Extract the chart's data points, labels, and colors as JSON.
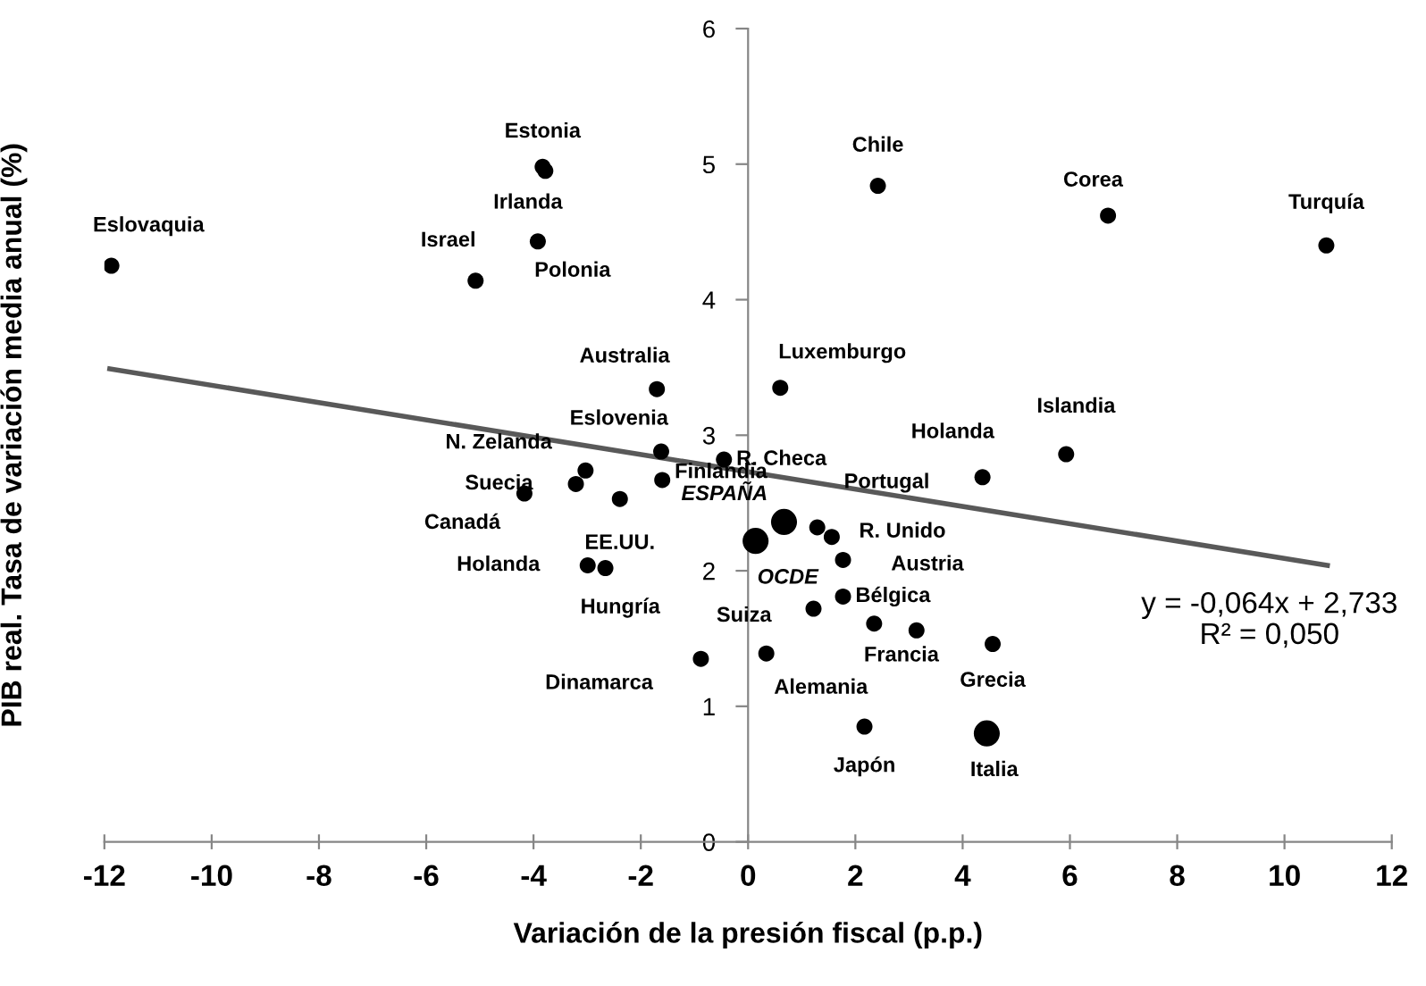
{
  "chart_data": {
    "type": "scatter",
    "xlabel": "Variación de la presión fiscal (p.p.)",
    "ylabel": "PIB real. Tasa de variación media anual (%)",
    "xlim": [
      -12,
      12
    ],
    "xticks": [
      -12,
      -10,
      -8,
      -6,
      -4,
      -2,
      0,
      2,
      4,
      6,
      8,
      10,
      12
    ],
    "ylim": [
      0,
      6
    ],
    "yticks": [
      0,
      1,
      2,
      3,
      4,
      5,
      6
    ],
    "grid": false,
    "marker": "circle",
    "series": [
      {
        "color": "#000000",
        "x": [
          -11.87,
          -3.83,
          -3.78,
          -5.08,
          -3.92,
          -1.7,
          -1.62,
          -3.03,
          -3.21,
          -4.17,
          -2.39,
          -1.6,
          -0.45,
          0.6,
          1.29,
          1.56,
          1.77,
          1.77,
          1.22,
          2.35,
          3.14,
          4.56,
          0.34,
          -0.88,
          -2.99,
          -2.66,
          2.42,
          6.71,
          10.78,
          5.93,
          4.37,
          2.17
        ],
        "values": [
          4.25,
          4.98,
          4.95,
          4.14,
          4.43,
          3.34,
          2.88,
          2.74,
          2.64,
          2.57,
          2.53,
          2.67,
          2.82,
          3.35,
          2.32,
          2.25,
          2.08,
          1.81,
          1.72,
          1.61,
          1.56,
          1.46,
          1.39,
          1.35,
          2.04,
          2.02,
          4.84,
          4.62,
          4.4,
          2.86,
          2.69,
          0.85
        ]
      },
      {
        "color": "#000000",
        "type": "bubble",
        "x": [
          0.67,
          0.14,
          4.45
        ],
        "values": [
          2.36,
          2.22,
          0.8
        ]
      },
      {
        "type": "line",
        "color": "#595959",
        "marker": "none",
        "line_style": "solid",
        "x": [
          -11.9,
          10.8
        ],
        "values": [
          3.49,
          2.04
        ]
      }
    ],
    "annotations": [
      {
        "text": "Eslovaquia",
        "x": -11.87,
        "y": 4.25
      },
      {
        "text": "Estonia",
        "x": -3.83,
        "y": 4.98
      },
      {
        "text": "Irlanda",
        "x": -3.78,
        "y": 4.95
      },
      {
        "text": "Israel",
        "x": -5.08,
        "y": 4.14
      },
      {
        "text": "Polonia",
        "x": -3.92,
        "y": 4.43
      },
      {
        "text": "Australia",
        "x": -1.7,
        "y": 3.34
      },
      {
        "text": "Eslovenia",
        "x": -1.62,
        "y": 2.88
      },
      {
        "text": "N. Zelanda",
        "x": -3.03,
        "y": 2.74
      },
      {
        "text": "Suecia",
        "x": -3.21,
        "y": 2.64
      },
      {
        "text": "Canadá",
        "x": -4.17,
        "y": 2.57
      },
      {
        "text": "EE.UU.",
        "x": -2.39,
        "y": 2.53
      },
      {
        "text": "Finlandia",
        "x": -1.6,
        "y": 2.67
      },
      {
        "text": "R. Checa",
        "x": -0.45,
        "y": 2.82
      },
      {
        "text": "Luxemburgo",
        "x": 0.6,
        "y": 3.35
      },
      {
        "text": "ESPAÑA",
        "x": 0.67,
        "y": 2.36
      },
      {
        "text": "OCDE",
        "x": 0.14,
        "y": 2.22
      },
      {
        "text": "Portugal",
        "x": 1.29,
        "y": 2.32
      },
      {
        "text": "R. Unido",
        "x": 1.56,
        "y": 2.25
      },
      {
        "text": "Austria",
        "x": 1.77,
        "y": 2.08
      },
      {
        "text": "Bélgica",
        "x": 1.77,
        "y": 1.81
      },
      {
        "text": "Suiza",
        "x": 1.22,
        "y": 1.72
      },
      {
        "text": "Francia",
        "x": 2.35,
        "y": 1.61
      },
      {
        "text": "Grecia",
        "x": 4.56,
        "y": 1.46
      },
      {
        "text": "Alemania",
        "x": 0.34,
        "y": 1.39
      },
      {
        "text": "Dinamarca",
        "x": -0.88,
        "y": 1.35
      },
      {
        "text": "Holanda",
        "x": -2.99,
        "y": 2.04
      },
      {
        "text": "Hungría",
        "x": -2.66,
        "y": 2.02
      },
      {
        "text": "Chile",
        "x": 2.42,
        "y": 4.84
      },
      {
        "text": "Corea",
        "x": 6.71,
        "y": 4.62
      },
      {
        "text": "Turquía",
        "x": 10.78,
        "y": 4.4
      },
      {
        "text": "Islandia",
        "x": 5.93,
        "y": 2.86
      },
      {
        "text": "Holanda",
        "x": 4.37,
        "y": 2.69
      },
      {
        "text": "Japón",
        "x": 2.17,
        "y": 0.85
      },
      {
        "text": "Italia",
        "x": 4.45,
        "y": 0.8
      },
      "y = -0,064x + 2,733\nR² = 0,050"
    ]
  }
}
